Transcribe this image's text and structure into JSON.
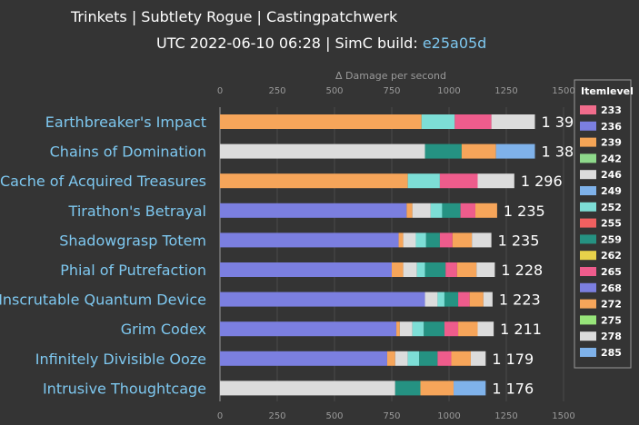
{
  "header": {
    "title": "Trinkets | Subtlety Rogue | Castingpatchwerk",
    "subtitle_prefix": "UTC 2022-06-10 06:28 | SimC build: ",
    "build_link": "e25a05d"
  },
  "chart_data": {
    "type": "bar",
    "orientation": "horizontal",
    "stacked": true,
    "xlabel": "Δ Damage per second",
    "xlim": [
      0,
      1500
    ],
    "xticks": [
      0,
      250,
      500,
      750,
      1000,
      1250,
      1500
    ],
    "tick_labels": [
      "0",
      "250",
      "500",
      "750",
      "1000",
      "1250",
      "1500"
    ],
    "legend_title": "Itemlevel",
    "legend_position": "right",
    "levels": [
      "233",
      "236",
      "239",
      "242",
      "246",
      "249",
      "252",
      "255",
      "259",
      "262",
      "265",
      "268",
      "272",
      "275",
      "278",
      "285"
    ],
    "level_colors": {
      "233": "#f06c8b",
      "236": "#7b7fe0",
      "239": "#f4a456",
      "242": "#8ed98b",
      "246": "#dcdcdc",
      "249": "#7fb2ea",
      "252": "#7dded6",
      "255": "#f06060",
      "259": "#259282",
      "262": "#e7d24a",
      "265": "#ee5c8c",
      "268": "#7b7fe0",
      "272": "#f6a55a",
      "275": "#97e47a",
      "278": "#dcdcdc",
      "285": "#7fb2ea"
    },
    "categories": [
      "Earthbreaker's Impact",
      "Chains of Domination",
      "Cache of Acquired Treasures",
      "Tirathon's Betrayal",
      "Shadowgrasp Totem",
      "Phial of Putrefaction",
      "Inscrutable Quantum Device",
      "Grim Codex",
      "Infinitely Divisible Ooze",
      "Intrusive Thoughtcage"
    ],
    "total_labels": [
      "1 39",
      "1 38",
      "1 296",
      "1 235",
      "1 235",
      "1 228",
      "1 223",
      "1 211",
      "1 179",
      "1 176"
    ],
    "bars": [
      {
        "segments": [
          {
            "level": "272",
            "value": 880
          },
          {
            "level": "252",
            "value": 145
          },
          {
            "level": "265",
            "value": 160
          },
          {
            "level": "278",
            "value": 190
          }
        ]
      },
      {
        "segments": [
          {
            "level": "278",
            "value": 895
          },
          {
            "level": "259",
            "value": 160
          },
          {
            "level": "272",
            "value": 150
          },
          {
            "level": "285",
            "value": 170
          }
        ]
      },
      {
        "segments": [
          {
            "level": "272",
            "value": 820
          },
          {
            "level": "252",
            "value": 140
          },
          {
            "level": "265",
            "value": 165
          },
          {
            "level": "278",
            "value": 160
          }
        ]
      },
      {
        "segments": [
          {
            "level": "268",
            "value": 815
          },
          {
            "level": "272",
            "value": 25
          },
          {
            "level": "278",
            "value": 80
          },
          {
            "level": "252",
            "value": 50
          },
          {
            "level": "259",
            "value": 80
          },
          {
            "level": "265",
            "value": 65
          },
          {
            "level": "272",
            "value": 95
          }
        ]
      },
      {
        "segments": [
          {
            "level": "268",
            "value": 780
          },
          {
            "level": "272",
            "value": 20
          },
          {
            "level": "278",
            "value": 55
          },
          {
            "level": "252",
            "value": 45
          },
          {
            "level": "259",
            "value": 60
          },
          {
            "level": "265",
            "value": 55
          },
          {
            "level": "272",
            "value": 85
          },
          {
            "level": "278",
            "value": 85
          }
        ]
      },
      {
        "segments": [
          {
            "level": "268",
            "value": 750
          },
          {
            "level": "272",
            "value": 50
          },
          {
            "level": "278",
            "value": 60
          },
          {
            "level": "252",
            "value": 35
          },
          {
            "level": "259",
            "value": 90
          },
          {
            "level": "265",
            "value": 50
          },
          {
            "level": "272",
            "value": 85
          },
          {
            "level": "278",
            "value": 80
          }
        ]
      },
      {
        "segments": [
          {
            "level": "268",
            "value": 895
          },
          {
            "level": "278",
            "value": 55
          },
          {
            "level": "252",
            "value": 30
          },
          {
            "level": "259",
            "value": 60
          },
          {
            "level": "265",
            "value": 50
          },
          {
            "level": "272",
            "value": 60
          },
          {
            "level": "278",
            "value": 40
          }
        ]
      },
      {
        "segments": [
          {
            "level": "268",
            "value": 770
          },
          {
            "level": "272",
            "value": 15
          },
          {
            "level": "278",
            "value": 55
          },
          {
            "level": "252",
            "value": 50
          },
          {
            "level": "259",
            "value": 90
          },
          {
            "level": "265",
            "value": 60
          },
          {
            "level": "272",
            "value": 85
          },
          {
            "level": "278",
            "value": 70
          }
        ]
      },
      {
        "segments": [
          {
            "level": "268",
            "value": 730
          },
          {
            "level": "272",
            "value": 35
          },
          {
            "level": "278",
            "value": 55
          },
          {
            "level": "252",
            "value": 50
          },
          {
            "level": "259",
            "value": 80
          },
          {
            "level": "265",
            "value": 60
          },
          {
            "level": "272",
            "value": 85
          },
          {
            "level": "278",
            "value": 65
          }
        ]
      },
      {
        "segments": [
          {
            "level": "278",
            "value": 765
          },
          {
            "level": "259",
            "value": 110
          },
          {
            "level": "272",
            "value": 145
          },
          {
            "level": "285",
            "value": 140
          }
        ]
      }
    ]
  }
}
